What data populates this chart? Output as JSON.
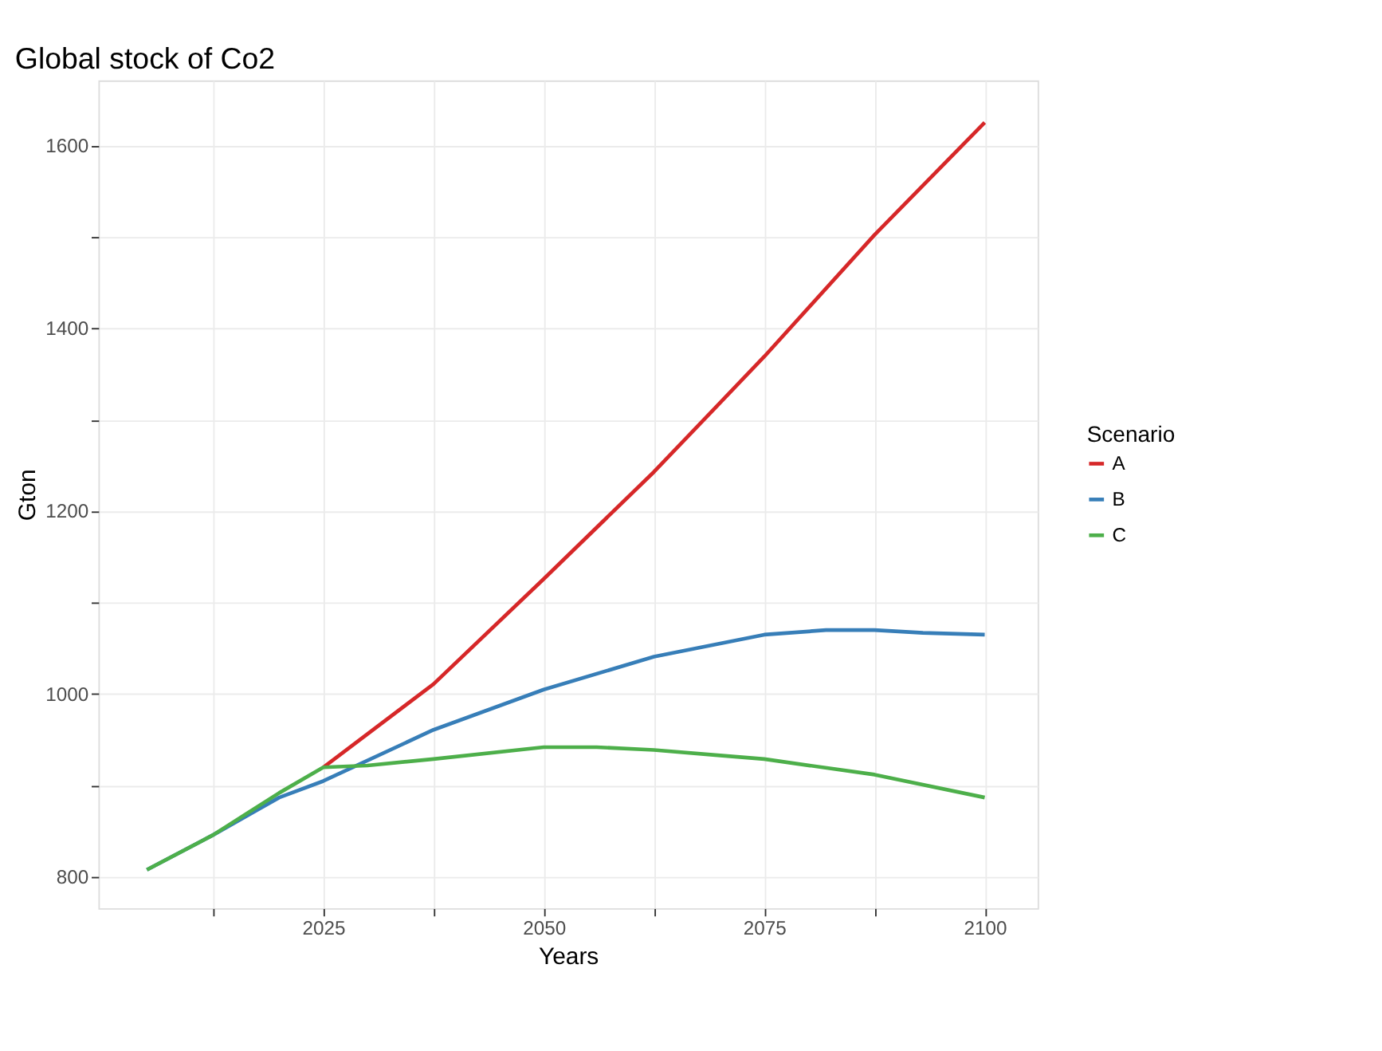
{
  "chart_data": {
    "type": "line",
    "title": "Global stock of Co2",
    "xlabel": "Years",
    "ylabel": "Gton",
    "legend_title": "Scenario",
    "series": [
      {
        "name": "A",
        "color": "#d62728",
        "x": [
          2025,
          2037.5,
          2050,
          2062.5,
          2075,
          2087.5,
          2100
        ],
        "values": [
          920,
          1011,
          1126,
          1243,
          1369,
          1502,
          1625
        ]
      },
      {
        "name": "B",
        "color": "#377eb8",
        "x": [
          2005,
          2012.5,
          2020,
          2025,
          2037.5,
          2050,
          2062.5,
          2075,
          2082,
          2087.5,
          2093,
          2100
        ],
        "values": [
          808,
          846,
          887,
          905,
          961,
          1005,
          1041,
          1065,
          1070,
          1070,
          1067,
          1065
        ]
      },
      {
        "name": "C",
        "color": "#4daf4a",
        "x": [
          2005,
          2012.5,
          2020,
          2025,
          2030,
          2037.5,
          2050,
          2056,
          2062.5,
          2070,
          2075,
          2087.5,
          2100
        ],
        "values": [
          808,
          846,
          892,
          920,
          922,
          929,
          942,
          942,
          939,
          933,
          929,
          912,
          887
        ]
      }
    ],
    "xlim": [
      1999.5,
      2106
    ],
    "ylim": [
      766,
      1671
    ],
    "xticks": [
      {
        "value": 2012.5,
        "label": null
      },
      2025,
      {
        "value": 2037.5,
        "label": null
      },
      2050,
      {
        "value": 2062.5,
        "label": null
      },
      2075,
      {
        "value": 2087.5,
        "label": null
      },
      2100
    ],
    "yticks": [
      800,
      {
        "value": 900,
        "label": null
      },
      1000,
      {
        "value": 1100,
        "label": null
      },
      1200,
      {
        "value": 1300,
        "label": null
      },
      1400,
      {
        "value": 1500,
        "label": null
      },
      1600
    ],
    "grid": true,
    "legend": "right",
    "marker": "none",
    "line_style": "solid"
  }
}
